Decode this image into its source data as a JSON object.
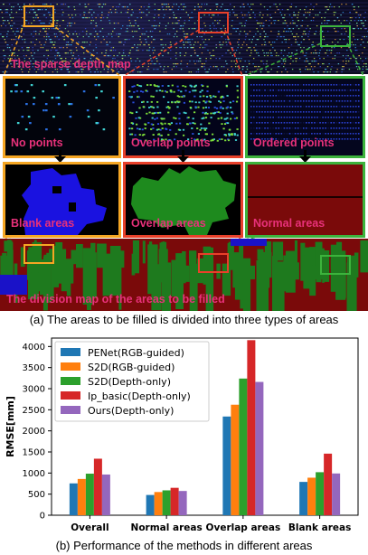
{
  "figure": {
    "label_sparse_map": "The sparse depth map",
    "label_no_points": "No points",
    "label_overlap_points": "Overlap points",
    "label_ordered_points": "Ordered points",
    "label_blank_areas": "Blank areas",
    "label_overlap_areas": "Overlap areas",
    "label_normal_areas": "Normal areas",
    "label_division_map": "The division map of the areas to be filled",
    "caption_a": "(a) The areas to be filled is divided into three types of  areas",
    "caption_b": "(b) Performance of the methods in different areas",
    "colors": {
      "label_pink": "#e8317a",
      "box_orange": "#f5a623",
      "box_red": "#e8402a",
      "box_green": "#3cb33c"
    }
  },
  "chart_data": {
    "type": "bar",
    "ylabel": "RMSE[mm]",
    "xlabel": "",
    "ylim": [
      0,
      4200
    ],
    "yticks": [
      0,
      500,
      1000,
      1500,
      2000,
      2500,
      3000,
      3500,
      4000
    ],
    "categories": [
      "Overall",
      "Normal areas",
      "Overlap areas",
      "Blank areas"
    ],
    "legend_position": "top-left",
    "grid": false,
    "series": [
      {
        "name": "PENet(RGB-guided)",
        "color": "#1f77b4",
        "values": [
          755,
          480,
          2340,
          790
        ]
      },
      {
        "name": "S2D(RGB-guided)",
        "color": "#ff7f0e",
        "values": [
          860,
          550,
          2620,
          890
        ]
      },
      {
        "name": "S2D(Depth-only)",
        "color": "#2ca02c",
        "values": [
          985,
          590,
          3240,
          1020
        ]
      },
      {
        "name": "Ip_basic(Depth-only)",
        "color": "#d62728",
        "values": [
          1340,
          650,
          4150,
          1460
        ]
      },
      {
        "name": "Ours(Depth-only)",
        "color": "#9467bd",
        "values": [
          965,
          575,
          3160,
          990
        ]
      }
    ]
  }
}
